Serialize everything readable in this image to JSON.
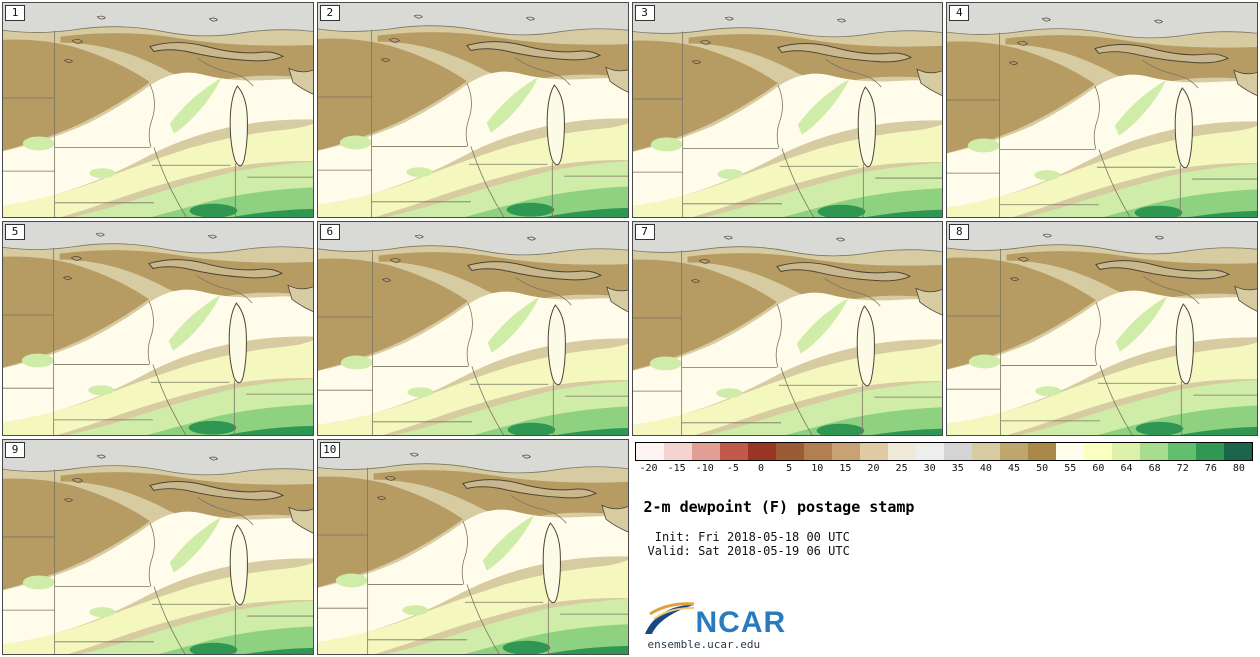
{
  "panels": [
    {
      "label": "1"
    },
    {
      "label": "2"
    },
    {
      "label": "3"
    },
    {
      "label": "4"
    },
    {
      "label": "5"
    },
    {
      "label": "6"
    },
    {
      "label": "7"
    },
    {
      "label": "8"
    },
    {
      "label": "9"
    },
    {
      "label": "10"
    }
  ],
  "colorbar": {
    "ticks": [
      "-20",
      "-15",
      "-10",
      "-5",
      "0",
      "5",
      "10",
      "15",
      "20",
      "25",
      "30",
      "35",
      "40",
      "45",
      "50",
      "55",
      "60",
      "64",
      "68",
      "72",
      "76",
      "80"
    ],
    "colors": [
      "#fdf4f3",
      "#f5d3ce",
      "#e09e94",
      "#c25a4b",
      "#9a3526",
      "#9b5b35",
      "#b47f50",
      "#c9a274",
      "#dfcba4",
      "#f0ead9",
      "#eeeeec",
      "#d4d4d4",
      "#d7cba1",
      "#bfa66c",
      "#aa8948",
      "#fffceb",
      "#fbffbf",
      "#def1ab",
      "#a9dd8e",
      "#61bf6d",
      "#2f9852",
      "#1a654b"
    ]
  },
  "legend": {
    "title": "2-m dewpoint (F) postage stamp",
    "init": " Init: Fri 2018-05-18 00 UTC",
    "valid": "Valid: Sat 2018-05-19 06 UTC",
    "logo_text": "NCAR",
    "site": "ensemble.ucar.edu"
  },
  "map_palette": {
    "gray": "#d9d9d6",
    "khaki": "#d7cba1",
    "brown": "#b69b63",
    "cream": "#fffceb",
    "pyellow": "#f4f8bf",
    "lgreen": "#cfeca8",
    "green": "#8ed181",
    "dgreen": "#2f9751",
    "lake-sup": "#c9b88e",
    "lake-mich": "#fcfbe6",
    "border": "#7b7563",
    "border-dark": "#4b4436"
  },
  "chart_data": {
    "type": "heatmap",
    "title": "2-m dewpoint (F) postage stamp",
    "variable": "2-m dewpoint",
    "units": "F",
    "n_members": 10,
    "member_labels": [
      "1",
      "2",
      "3",
      "4",
      "5",
      "6",
      "7",
      "8",
      "9",
      "10"
    ],
    "init_time": "Fri 2018-05-18 00 UTC",
    "valid_time": "Sat 2018-05-19 06 UTC",
    "colorbar_levels": [
      -20,
      -15,
      -10,
      -5,
      0,
      5,
      10,
      15,
      20,
      25,
      30,
      35,
      40,
      45,
      50,
      55,
      60,
      64,
      68,
      72,
      76,
      80
    ],
    "colorbar_colors": [
      "#fdf4f3",
      "#f5d3ce",
      "#e09e94",
      "#c25a4b",
      "#9a3526",
      "#9b5b35",
      "#b47f50",
      "#c9a274",
      "#dfcba4",
      "#f0ead9",
      "#eeeeec",
      "#d4d4d4",
      "#d7cba1",
      "#bfa66c",
      "#aa8948",
      "#fffceb",
      "#fbffbf",
      "#def1ab",
      "#a9dd8e",
      "#61bf6d",
      "#2f9852",
      "#1a654b"
    ],
    "legend_position": "bottom-right",
    "source_site": "ensemble.ucar.edu"
  }
}
